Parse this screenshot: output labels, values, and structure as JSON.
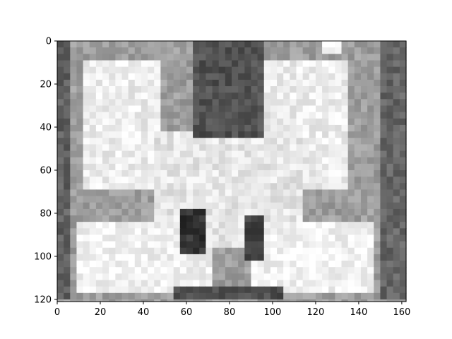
{
  "chart_data": {
    "type": "heatmap",
    "title": "",
    "xlabel": "",
    "ylabel": "",
    "colormap": "gray",
    "image_width": 162,
    "image_height": 121,
    "xlim": [
      0,
      162
    ],
    "ylim": [
      121,
      0
    ],
    "x_ticks": [
      0,
      20,
      40,
      60,
      80,
      100,
      120,
      140,
      160
    ],
    "y_ticks": [
      0,
      20,
      40,
      60,
      80,
      100,
      120
    ],
    "x_tick_labels": [
      "0",
      "20",
      "40",
      "60",
      "80",
      "100",
      "120",
      "140",
      "160"
    ],
    "y_tick_labels": [
      "0",
      "20",
      "40",
      "60",
      "80",
      "100",
      "120"
    ],
    "grid": false,
    "legend": "none",
    "background_intensity": 0.62,
    "regions": [
      {
        "name": "upper-left block",
        "x": [
          13,
          48
        ],
        "y": [
          10,
          68
        ],
        "intensity": 0.93
      },
      {
        "name": "upper-right block",
        "x": [
          95,
          135
        ],
        "y": [
          10,
          68
        ],
        "intensity": 0.93
      },
      {
        "name": "center body",
        "x": [
          45,
          115
        ],
        "y": [
          42,
          95
        ],
        "intensity": 0.9
      },
      {
        "name": "lower-left block",
        "x": [
          8,
          72
        ],
        "y": [
          84,
          117
        ],
        "intensity": 0.95
      },
      {
        "name": "lower-right block",
        "x": [
          90,
          148
        ],
        "y": [
          84,
          117
        ],
        "intensity": 0.95
      },
      {
        "name": "top dark gap",
        "x": [
          63,
          95
        ],
        "y": [
          0,
          45
        ],
        "intensity": 0.32
      },
      {
        "name": "left dark column",
        "x": [
          58,
          68
        ],
        "y": [
          78,
          99
        ],
        "intensity": 0.2
      },
      {
        "name": "right dark column",
        "x": [
          86,
          96
        ],
        "y": [
          80,
          101
        ],
        "intensity": 0.25
      },
      {
        "name": "left edge",
        "x": [
          0,
          6
        ],
        "y": [
          0,
          121
        ],
        "intensity": 0.38
      },
      {
        "name": "right edge",
        "x": [
          150,
          162
        ],
        "y": [
          0,
          121
        ],
        "intensity": 0.4
      },
      {
        "name": "bottom band",
        "x": [
          55,
          105
        ],
        "y": [
          114,
          121
        ],
        "intensity": 0.3
      },
      {
        "name": "bright spot top-right",
        "x": [
          123,
          132
        ],
        "y": [
          0,
          5
        ],
        "intensity": 1.0
      }
    ]
  }
}
